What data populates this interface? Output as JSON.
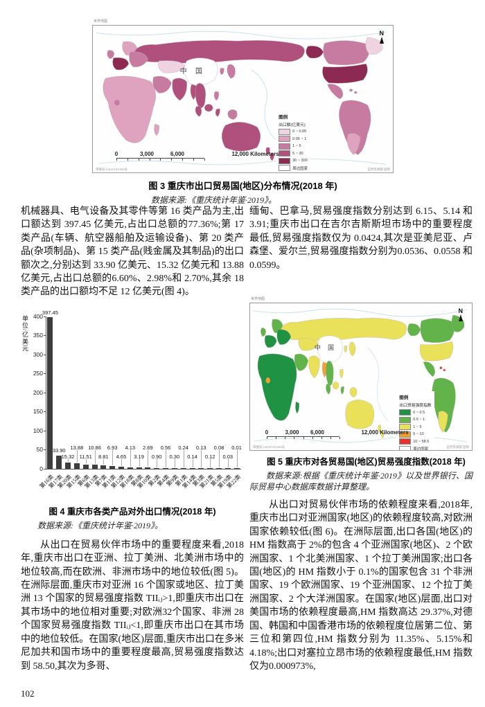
{
  "page": {
    "number": "102"
  },
  "figure3": {
    "corner_label": "世界地图",
    "china_label": "中 国",
    "north_label": "N",
    "scale_labels": [
      "0",
      "3,000",
      "6,000",
      "12,000 Kilometers"
    ],
    "legend": {
      "title": "图例",
      "subtitle": "出口额(亿美元)",
      "items": [
        {
          "label": "0 ~ 0.05",
          "color": "#f0d3e1"
        },
        {
          "label": "0.05 ~ 1",
          "color": "#dfa3c0"
        },
        {
          "label": "1 ~ 5",
          "color": "#c77ba1"
        },
        {
          "label": "5 ~ 30",
          "color": "#b0507c"
        },
        {
          "label": "30 ~ 300",
          "color": "#8c2a53"
        },
        {
          "label": "周边国家",
          "color": "#ffffff"
        }
      ]
    },
    "approval_left": "审图号:GS(2016)1666号",
    "approval_right": "自然资源部 监制",
    "caption": "图 3  重庆市出口贸易国(地区)分布情况(2018 年)",
    "source": "数据来源:《重庆统计年鉴·2019》。",
    "map_fills": {
      "russia": "#b0507c",
      "alaska": "#8c2a53",
      "canada": "#c77ba1",
      "greenland": "#f0d3e1",
      "usa": "#8c2a53",
      "mexico": "#c77ba1",
      "caribbean": "#c77ba1",
      "south_america": "#c77ba1",
      "argentina": "#dfa3c0",
      "europe_north": "#dfa3c0",
      "uk": "#c77ba1",
      "europe_west": "#8c2a53",
      "europe_east": "#c77ba1",
      "africa": "#dfa3c0",
      "madagascar": "#dfa3c0",
      "west_africa": "#c77ba1",
      "middle_east": "#c77ba1",
      "central_asia": "#f0d3e1",
      "india": "#b0507c",
      "china": "#ffffff",
      "korea": "#c77ba1",
      "japan": "#c77ba1",
      "myanmar": "#b0507c",
      "se_asia": "#b0507c",
      "philippines": "#c77ba1",
      "sumatra": "#b0507c",
      "borneo": "#b0507c",
      "sulawesi": "#b0507c",
      "papua": "#c77ba1",
      "australia": "#b0507c",
      "new_zealand": "#b0507c"
    }
  },
  "left_column": {
    "para1": "机械器具、电气设备及其零件等第 16 类产品为主,出口额达到 397.45 亿美元,占出口总额的77.36%;第 17 类产品(车辆、航空器船舶及运输设备)、第 20 类产品(杂项制品)、第 15 类产品(贱金属及其制品)的出口额次之,分别达到 33.90 亿美元、15.32 亿美元和 13.88 亿美元,占出口总额的6.60%、2.98%和 2.70%,其余 18 类产品的出口额均不足 12 亿美元(图 4)。",
    "para2": "从出口在贸易伙伴市场中的重要程度来看,2018 年,重庆市出口在亚洲、拉丁美洲、北美洲市场中的地位较高,而在欧洲、非洲市场中的地位较低(图 5)。在洲际层面,重庆市对亚洲 16 个国家或地区、拉丁美洲 13 个国家的贸易强度指数 TIIᵢⱼ>1,即重庆市出口在其市场中的地位相对重要;对欧洲32个国家、非洲 28 个国家贸易强度指数 TIIᵢⱼ<1,即重庆市出口在其市场中的地位较低。在国家(地区)层面,重庆市出口在多米尼加共和国市场中的重要程度最高,贸易强度指数达到 58.50,其次为多哥、"
  },
  "chart_data": {
    "type": "bar",
    "title": "图 4 重庆市各类产品对外出口情况(2018 年)",
    "categories": [
      "第16类",
      "第17类",
      "第20类",
      "第15类",
      "第6类",
      "第13类",
      "第7类",
      "第11类",
      "第12类",
      "第18类",
      "第8类",
      "第10类",
      "第2类",
      "第4类",
      "第9类",
      "第1类",
      "第14类",
      "第3类",
      "第21类",
      "第5类",
      "第19类",
      "第22类"
    ],
    "values": [
      397.45,
      33.9,
      15.32,
      13.88,
      11.51,
      10.86,
      8.81,
      6.93,
      4.65,
      4.13,
      3.19,
      2.69,
      0.9,
      0.56,
      0.3,
      0.24,
      0.14,
      0.13,
      0.12,
      0.08,
      0.03,
      0.01
    ],
    "ylabel": "单位/亿美元",
    "yticks": [
      0,
      50,
      100,
      150,
      200,
      250,
      300,
      350,
      400
    ],
    "ylim": [
      0,
      400
    ],
    "grid": false,
    "legend_position": "none",
    "bar_color": "#3d3d3d"
  },
  "figure4": {
    "caption": "图 4  重庆市各类产品对外出口情况(2018 年)",
    "source": "数据来源:《重庆统计年鉴·2019》。"
  },
  "figure5": {
    "corner_label": "世界地图",
    "china_label": "中 国",
    "north_label": "N",
    "scale_labels": [
      "0",
      "3,000",
      "6,000",
      "12,000 Kilometers"
    ],
    "legend": {
      "title": "图例",
      "subtitle": "出口贸易强度指数",
      "items": [
        {
          "label": "0 ~ 0.5",
          "color": "#1f9244"
        },
        {
          "label": "0.5 ~ 1",
          "color": "#62b44a"
        },
        {
          "label": "1 ~ 5",
          "color": "#e9e15a"
        },
        {
          "label": "5 ~ 10",
          "color": "#f5a02c"
        },
        {
          "label": "10 ~ 58.5",
          "color": "#e8322e"
        },
        {
          "label": "周边国家",
          "color": "#ffffff"
        }
      ]
    },
    "approval_left": "审图号:GS(2016)1666号",
    "approval_right": "自然资源部 监制",
    "caption": "图 5  重庆市对各贸易国(地区)贸易强度指数(2018 年)",
    "source": "数据来源:根据《重庆统计年鉴·2019》以及世界银行、国际贸易中心数据库数据计算整理。",
    "map_fills": {
      "russia": "#e9e15a",
      "alaska": "#62b44a",
      "canada": "#62b44a",
      "greenland": "#62b44a",
      "usa": "#e9e15a",
      "mexico": "#62b44a",
      "caribbean": "#e8322e",
      "south_america": "#62b44a",
      "argentina": "#e9e15a",
      "europe_north": "#62b44a",
      "uk": "#62b44a",
      "europe_west": "#1f9244",
      "europe_east": "#1f9244",
      "africa": "#1f9244",
      "madagascar": "#1f9244",
      "west_africa": "#f5a02c",
      "middle_east": "#62b44a",
      "central_asia": "#e9e15a",
      "india": "#e9e15a",
      "china": "#ffffff",
      "korea": "#e9e15a",
      "japan": "#e9e15a",
      "myanmar": "#f5a02c",
      "se_asia": "#62b44a",
      "philippines": "#e9e15a",
      "sumatra": "#62b44a",
      "borneo": "#e9e15a",
      "sulawesi": "#62b44a",
      "papua": "#e9e15a",
      "australia": "#e9e15a",
      "new_zealand": "#e9e15a"
    }
  },
  "right_column": {
    "para1": "缅甸、巴拿马,贸易强度指数分别达到 6.15、5.14 和 3.91;重庆市出口在吉尔吉斯斯坦市场中的重要程度最低,贸易强度指数仅为 0.0424,其次是亚美尼亚、卢森堡、爱尔兰,贸易强度指数分别为0.0536、0.0558 和 0.0599。",
    "para2": "从出口对贸易伙伴市场的依赖程度来看,2018年,重庆市出口对亚洲国家(地区)的依赖程度较高,对欧洲国家依赖较低(图 6)。在洲际层面,出口各国(地区)的 HM 指数高于 2%的包含 4 个亚洲国家(地区)、2 个欧洲国家、1 个北美洲国家、1 个拉丁美洲国家;出口各国(地区)的 HM 指数小于 0.1%的国家包含 31 个非洲国家、19 个欧洲国家、19 个亚洲国家、12 个拉丁美洲国家、2 个大洋洲国家。在国家(地区)层面,出口对美国市场的依赖程度最高,HM 指数高达 29.37%,对德国、韩国和中国香港市场的依赖程度位居第二位、第三位和第四位,HM 指数分别为 11.35%、5.15%和4.18%;出口对塞拉立昂市场的依赖程度最低,HM 指数仅为0.000973%,"
  }
}
